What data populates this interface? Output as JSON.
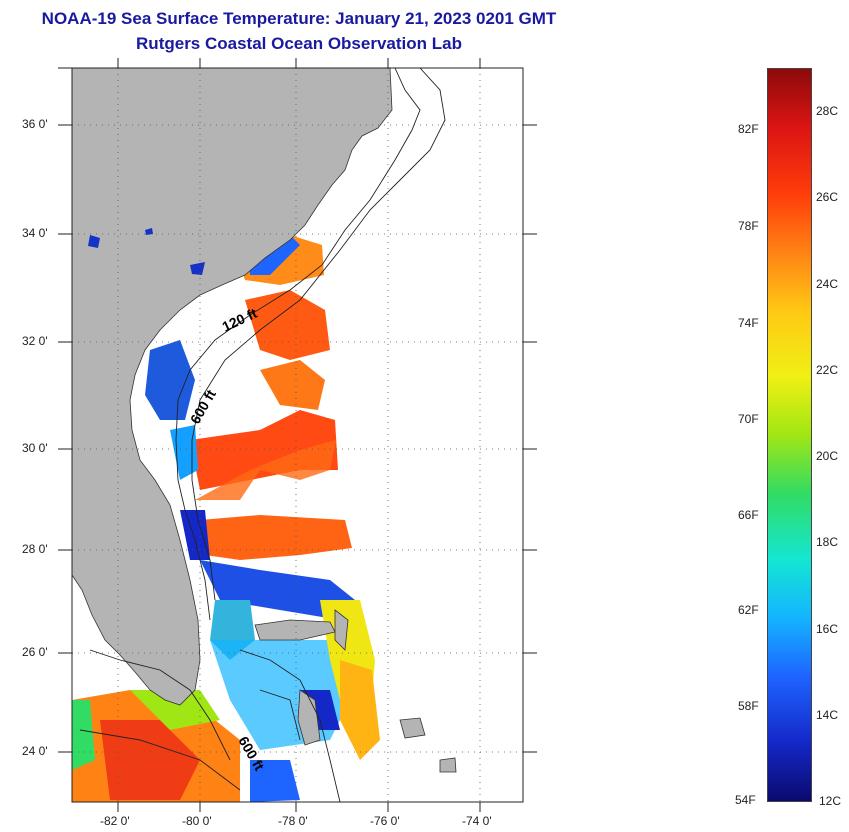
{
  "header": {
    "title": "NOAA-19 Sea Surface Temperature:  January 21, 2023 0201 GMT",
    "subtitle": "Rutgers Coastal Ocean Observation Lab"
  },
  "map": {
    "lat_ticks": [
      {
        "value": 36,
        "label": "36 0'"
      },
      {
        "value": 34,
        "label": "34 0'"
      },
      {
        "value": 32,
        "label": "32 0'"
      },
      {
        "value": 30,
        "label": "30 0'"
      },
      {
        "value": 28,
        "label": "28 0'"
      },
      {
        "value": 26,
        "label": "26 0'"
      },
      {
        "value": 24,
        "label": "24 0'"
      }
    ],
    "lon_ticks": [
      {
        "value": -82,
        "label": "-82 0'"
      },
      {
        "value": -80,
        "label": "-80 0'"
      },
      {
        "value": -78,
        "label": "-78 0'"
      },
      {
        "value": -76,
        "label": "-76 0'"
      },
      {
        "value": -74,
        "label": "-74 0'"
      }
    ],
    "lat_range": [
      23,
      37.1
    ],
    "lon_range": [
      -83,
      -73
    ],
    "contour_labels": [
      "120 ft",
      "600 ft",
      "600 ft"
    ],
    "land_color": "#b4b4b4",
    "no_data_color": "#ffffff"
  },
  "colorbar": {
    "fahrenheit_labels": [
      "82F",
      "78F",
      "74F",
      "70F",
      "66F",
      "62F",
      "58F",
      "54F"
    ],
    "celsius_labels": [
      "28C",
      "26C",
      "24C",
      "22C",
      "20C",
      "18C",
      "16C",
      "14C",
      "12C"
    ],
    "range_c": [
      12,
      29.2
    ],
    "colors": [
      "#0a0a6e",
      "#1428c8",
      "#1e64ff",
      "#14b4ff",
      "#14e6d2",
      "#32dc64",
      "#a0e614",
      "#f0f014",
      "#ffc814",
      "#ff8214",
      "#ff3c0a",
      "#dc1414",
      "#8c0a0a"
    ]
  }
}
